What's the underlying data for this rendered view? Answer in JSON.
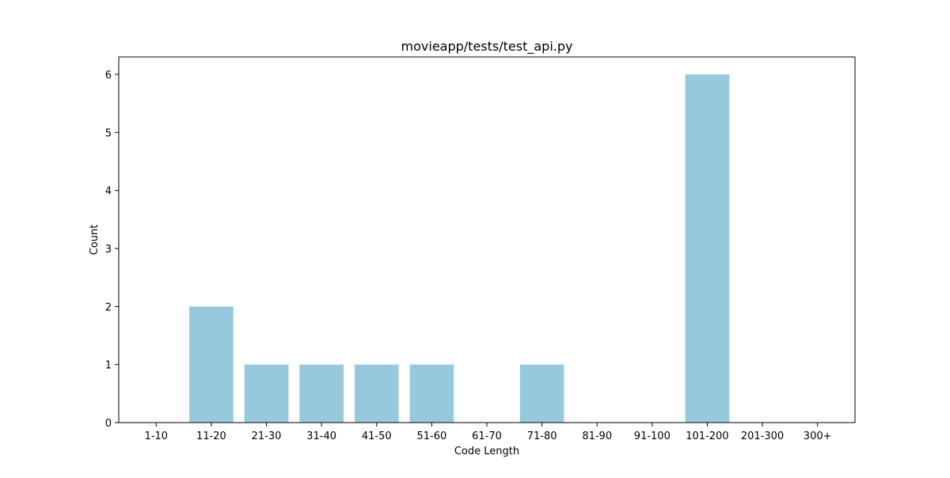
{
  "chart_data": {
    "type": "bar",
    "title": "movieapp/tests/test_api.py",
    "xlabel": "Code Length",
    "ylabel": "Count",
    "categories": [
      "1-10",
      "11-20",
      "21-30",
      "31-40",
      "41-50",
      "51-60",
      "61-70",
      "71-80",
      "81-90",
      "91-100",
      "101-200",
      "201-300",
      "300+"
    ],
    "values": [
      0,
      2,
      1,
      1,
      1,
      1,
      0,
      1,
      0,
      0,
      6,
      0,
      0
    ],
    "ylim": [
      0,
      6.3
    ],
    "yticks": [
      0,
      1,
      2,
      3,
      4,
      5,
      6
    ],
    "grid": false,
    "bar_color": "#96c9dc"
  }
}
